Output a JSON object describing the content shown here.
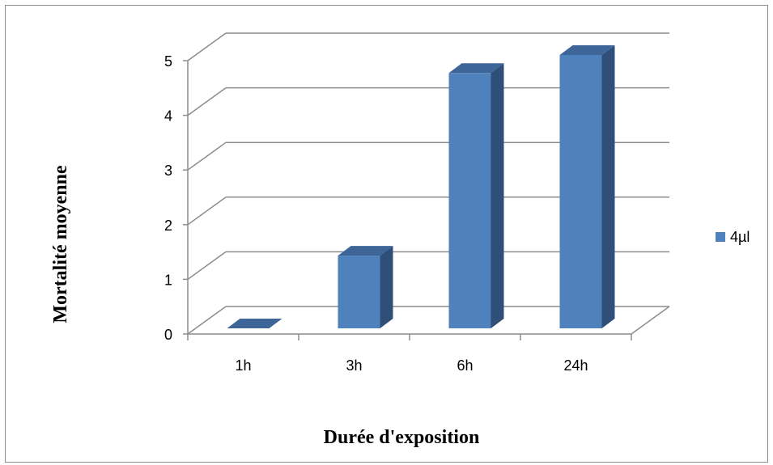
{
  "chart_data": {
    "type": "bar",
    "style": "3d-column",
    "categories": [
      "1h",
      "3h",
      "6h",
      "24h"
    ],
    "series": [
      {
        "name": "4µl",
        "values": [
          0,
          1.33,
          4.67,
          5
        ],
        "color": "#4f81bd"
      }
    ],
    "xlabel": "Durée d'exposition",
    "ylabel": "Mortalité moyenne",
    "ylim": [
      0,
      5
    ],
    "yticks": [
      "0",
      "1",
      "2",
      "3",
      "4",
      "5"
    ],
    "grid": true,
    "legend": "right"
  },
  "colors": {
    "bar_front": "#4f81bd",
    "bar_side": "#2f4f78",
    "bar_top": "#3d6598",
    "grid": "#8c8c8c"
  }
}
